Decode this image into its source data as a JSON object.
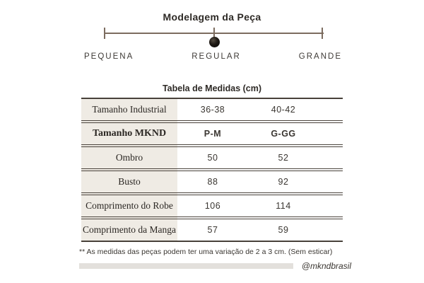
{
  "modelagem": {
    "title": "Modelagem da Peça",
    "scale_labels": [
      "PEQUENA",
      "REGULAR",
      "GRANDE"
    ],
    "selected": "REGULAR"
  },
  "tabela": {
    "title": "Tabela de Medidas (cm)",
    "rows": [
      {
        "label": "Tamanho Industrial",
        "values": [
          "36-38",
          "40-42"
        ]
      },
      {
        "label": "Tamanho MKND",
        "values": [
          "P-M",
          "G-GG"
        ]
      },
      {
        "label": "Ombro",
        "values": [
          "50",
          "52"
        ]
      },
      {
        "label": "Busto",
        "values": [
          "88",
          "92"
        ]
      },
      {
        "label": "Comprimento do Robe",
        "values": [
          "106",
          "114"
        ]
      },
      {
        "label": "Comprimento da Manga",
        "values": [
          "57",
          "59"
        ]
      }
    ]
  },
  "footnote": "** As medidas das peças podem ter uma variação de 2 a 3 cm. (Sem esticar)",
  "handle": "@mkndbrasil",
  "colors": {
    "track": "#7c6c5f",
    "table_rule": "#48413a",
    "label_column_bg": "#efebe4",
    "bottom_bar": "#e3e0dc",
    "marker": "#1d1813"
  }
}
